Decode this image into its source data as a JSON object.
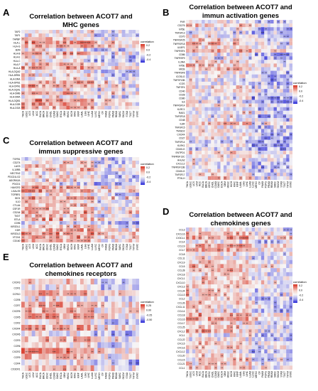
{
  "figure": {
    "colors": {
      "negative": "#1f1fd6",
      "neutral": "#f7f6f6",
      "positive": "#d7301f"
    },
    "cancer_types": [
      "THCA",
      "UCEC",
      "UCS",
      "UVM",
      "ACC",
      "BLCA",
      "BRCA",
      "CESC",
      "CHOL",
      "COAD",
      "DLBC",
      "ESCA",
      "GBM",
      "HNSC",
      "KICH",
      "KIRC",
      "KIRP",
      "LAML",
      "LGG",
      "LIHC",
      "LUAD",
      "LUSC",
      "MESO",
      "OV",
      "PAAD",
      "PCPG",
      "PRAD",
      "READ",
      "SARC",
      "SKCM",
      "STAD",
      "TGCT",
      "THYM",
      "UVM2"
    ]
  },
  "chart_data": [
    {
      "panel": "A",
      "type": "heatmap",
      "title": "Correlation between ACOT7 and MHC genes",
      "legend_title": "correlation",
      "legend_ticks": [
        "0.2",
        "0.0",
        "-0.2",
        "-0.4"
      ],
      "rows": [
        "TAP2",
        "TAP1",
        "TAPBP",
        "HLA-L",
        "HLA-G",
        "B2M",
        "HLA-B",
        "HLA-E",
        "HLA-C",
        "HLA-F",
        "HLA-A",
        "HLA-DQA2",
        "HLA-DRB1",
        "HLA-DRA",
        "HLA-DPB1",
        "HLA-DPA1",
        "HLA-DQA1",
        "HLA-DMB",
        "HLA-DMA",
        "HLA-DQB1",
        "HLA-DOB",
        "HLA-DOA"
      ],
      "seed": 11,
      "bias": 0.05
    },
    {
      "panel": "B",
      "type": "heatmap",
      "title": "Correlation between ACOT7 and immun activation genes",
      "legend_title": "correlation",
      "legend_ticks": [
        "0.2",
        "0.0",
        "-0.2",
        "-0.4"
      ],
      "rows": [
        "PVR",
        "CD276",
        "NT5E",
        "TNFSF13",
        "CD70",
        "TNFRSF25",
        "TNFRSF18",
        "ULBP1",
        "TNFRSF4",
        "CD86",
        "TNFRSF9",
        "IL2RA",
        "NT5E",
        "MICB",
        "TNFRSF8",
        "ICOSLG",
        "TNFSF13B",
        "ICOS",
        "TNFSF4",
        "CD40",
        "CD28",
        "CD80",
        "IL6",
        "TNFRSF14",
        "KLRC1",
        "RAE1",
        "TNFSF18",
        "CD48",
        "IL6R",
        "TNFSF15",
        "TMIGD2",
        "CXCR4",
        "CD27",
        "TNFSF14",
        "KLRK1",
        "CD40LG",
        "ENTPD1",
        "TNFRSF13C",
        "HHLA2",
        "CXCL12",
        "TNFRSF13B",
        "CD40LG",
        "TNFSF17",
        "PTHLH"
      ],
      "seed": 23,
      "bias": 0.02
    },
    {
      "panel": "C",
      "type": "heatmap",
      "title": "Correlation between ACOT7 and immun suppressive genes",
      "legend_title": "correlation",
      "legend_ticks": [
        "0.2",
        "0.0",
        "-0.2",
        "-0.4"
      ],
      "rows": [
        "TGFB1",
        "CD274",
        "LAG3",
        "IL10RB",
        "NECTIN2",
        "PDCD1LG2",
        "ADORA2A",
        "PDCD1",
        "HAVCR2",
        "LGALS9",
        "TGFBR1",
        "IDO1",
        "IL10",
        "CTLA4",
        "CSF1R",
        "CD244",
        "TIGIT",
        "BTLA",
        "CD96",
        "KIR2DL1",
        "KDR",
        "KIR2DL3",
        "VTCN1",
        "CD160"
      ],
      "seed": 37,
      "bias": 0.04
    },
    {
      "panel": "D",
      "type": "heatmap",
      "title": "Correlation between ACOT7 and chemokines genes",
      "legend_title": "correlation",
      "legend_ticks": [
        "0.2",
        "0.0",
        "-0.2",
        "-0.4"
      ],
      "rows": [
        "CCL3",
        "CXCL16",
        "CX3CL1",
        "CCL4",
        "CCL19",
        "CCL7",
        "CCL8",
        "CCL11",
        "CXCL9",
        "CCL5",
        "CCL28",
        "CXCL8",
        "CXCL1",
        "CXCL10",
        "CXCL3",
        "CCL24",
        "CCL13",
        "CCL2",
        "CCL26",
        "CXCL11",
        "CCL14",
        "CCL18",
        "CCL16",
        "CCL17",
        "CCL25",
        "CXCL2",
        "XCL1",
        "CCL22",
        "CXCL5",
        "CXCL6",
        "CXCL12",
        "CCL20",
        "CCL15",
        "CCL21",
        "CCL1"
      ],
      "seed": 53,
      "bias": 0.06
    },
    {
      "panel": "E",
      "type": "heatmap",
      "title": "Correlation between ACOT7 and chemokines receptors",
      "legend_title": "correlation",
      "legend_ticks": [
        "0.25",
        "0.00",
        "-0.25",
        "-0.50"
      ],
      "rows": [
        "CXCR3",
        "CCR1",
        "CCR10",
        "CCR8",
        "CCR7",
        "CXCR5",
        "CCR5",
        "CCR2",
        "CXCR4",
        "CXCR6",
        "CCR3",
        "CCR6",
        "CXCR2",
        "CCR9",
        "CCR4",
        "CX3CR1"
      ],
      "seed": 71,
      "bias": 0.08
    }
  ]
}
